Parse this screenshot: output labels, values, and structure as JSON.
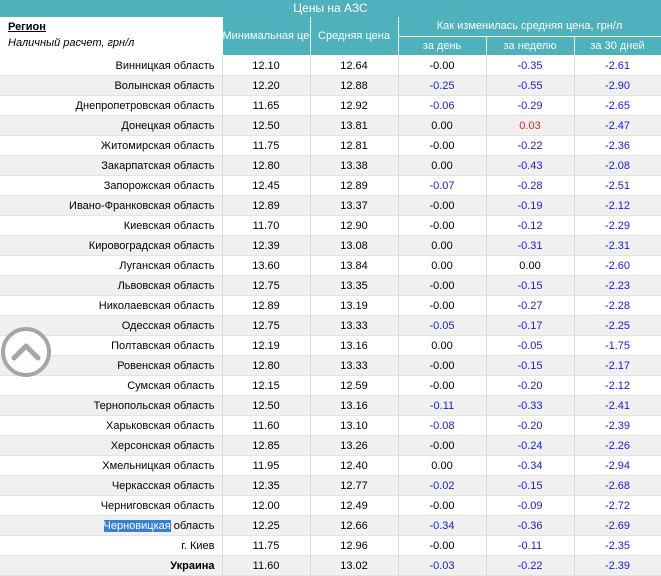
{
  "title": "Цены на АЗС",
  "header": {
    "region": "Регион",
    "subtitle": "Наличный расчет, грн/л",
    "min_price": "Минимальная цена",
    "avg_price": "Средняя цена",
    "change": "Как изменилась средняя цена, грн/л",
    "day": "за день",
    "week": "за неделю",
    "month": "за 30 дней"
  },
  "rows": [
    {
      "region": "Винницкая область",
      "min": "12.10",
      "avg": "12.64",
      "day": "-0.00",
      "week": "-0.35",
      "month": "-2.61"
    },
    {
      "region": "Волынская область",
      "min": "12.20",
      "avg": "12.88",
      "day": "-0.25",
      "week": "-0.55",
      "month": "-2.90"
    },
    {
      "region": "Днепропетровская область",
      "min": "11.65",
      "avg": "12.92",
      "day": "-0.06",
      "week": "-0.29",
      "month": "-2.65"
    },
    {
      "region": "Донецкая область",
      "min": "12.50",
      "avg": "13.81",
      "day": "0.00",
      "week": "0.03",
      "month": "-2.47"
    },
    {
      "region": "Житомирская область",
      "min": "11.75",
      "avg": "12.81",
      "day": "-0.00",
      "week": "-0.22",
      "month": "-2.36"
    },
    {
      "region": "Закарпатская область",
      "min": "12.80",
      "avg": "13.38",
      "day": "0.00",
      "week": "-0.43",
      "month": "-2.08"
    },
    {
      "region": "Запорожская область",
      "min": "12.45",
      "avg": "12.89",
      "day": "-0.07",
      "week": "-0.28",
      "month": "-2.51"
    },
    {
      "region": "Ивано-Франковская область",
      "min": "12.89",
      "avg": "13.37",
      "day": "-0.00",
      "week": "-0.19",
      "month": "-2.12"
    },
    {
      "region": "Киевская область",
      "min": "11.70",
      "avg": "12.90",
      "day": "-0.00",
      "week": "-0.12",
      "month": "-2.29"
    },
    {
      "region": "Кировоградская область",
      "min": "12.39",
      "avg": "13.08",
      "day": "0.00",
      "week": "-0.31",
      "month": "-2.31"
    },
    {
      "region": "Луганская область",
      "min": "13.60",
      "avg": "13.84",
      "day": "0.00",
      "week": "0.00",
      "month": "-2.60"
    },
    {
      "region": "Львовская область",
      "min": "12.75",
      "avg": "13.35",
      "day": "-0.00",
      "week": "-0.15",
      "month": "-2.23"
    },
    {
      "region": "Николаевская область",
      "min": "12.89",
      "avg": "13.19",
      "day": "-0.00",
      "week": "-0.27",
      "month": "-2.28"
    },
    {
      "region": "Одесская область",
      "min": "12.75",
      "avg": "13.33",
      "day": "-0.05",
      "week": "-0.17",
      "month": "-2.25"
    },
    {
      "region": "Полтавская область",
      "min": "12.19",
      "avg": "13.16",
      "day": "0.00",
      "week": "-0.05",
      "month": "-1.75"
    },
    {
      "region": "Ровенская область",
      "min": "12.80",
      "avg": "13.33",
      "day": "-0.00",
      "week": "-0.15",
      "month": "-2.17"
    },
    {
      "region": "Сумская область",
      "min": "12.15",
      "avg": "12.59",
      "day": "-0.00",
      "week": "-0.20",
      "month": "-2.12"
    },
    {
      "region": "Тернопольская область",
      "min": "12.50",
      "avg": "13.16",
      "day": "-0.11",
      "week": "-0.33",
      "month": "-2.41"
    },
    {
      "region": "Харьковская область",
      "min": "11.60",
      "avg": "13.10",
      "day": "-0.08",
      "week": "-0.20",
      "month": "-2.39"
    },
    {
      "region": "Херсонская область",
      "min": "12.85",
      "avg": "13.26",
      "day": "-0.00",
      "week": "-0.24",
      "month": "-2.26"
    },
    {
      "region": "Хмельницкая область",
      "min": "11.95",
      "avg": "12.40",
      "day": "0.00",
      "week": "-0.34",
      "month": "-2.94"
    },
    {
      "region": "Черкасская область",
      "min": "12.35",
      "avg": "12.77",
      "day": "-0.02",
      "week": "-0.15",
      "month": "-2.68"
    },
    {
      "region": "Черниговская область",
      "min": "12.00",
      "avg": "12.49",
      "day": "-0.00",
      "week": "-0.09",
      "month": "-2.72"
    },
    {
      "region": "Черновицкая область",
      "highlight": "Черновицкая",
      "rest": " область",
      "min": "12.25",
      "avg": "12.66",
      "day": "-0.34",
      "week": "-0.36",
      "month": "-2.69"
    },
    {
      "region": "г. Киев",
      "min": "11.75",
      "avg": "12.96",
      "day": "-0.00",
      "week": "-0.11",
      "month": "-2.35"
    },
    {
      "region": "Украина",
      "min": "11.60",
      "avg": "13.02",
      "day": "-0.03",
      "week": "-0.22",
      "month": "-2.39",
      "total": true
    }
  ],
  "colors": {
    "header_bg": "#4eb1bb",
    "negative": "#1a1adc",
    "positive": "#e8201e",
    "highlight": "#3a7fd5"
  },
  "icons": {
    "scroll_up": "chevron-up-circle-icon"
  }
}
